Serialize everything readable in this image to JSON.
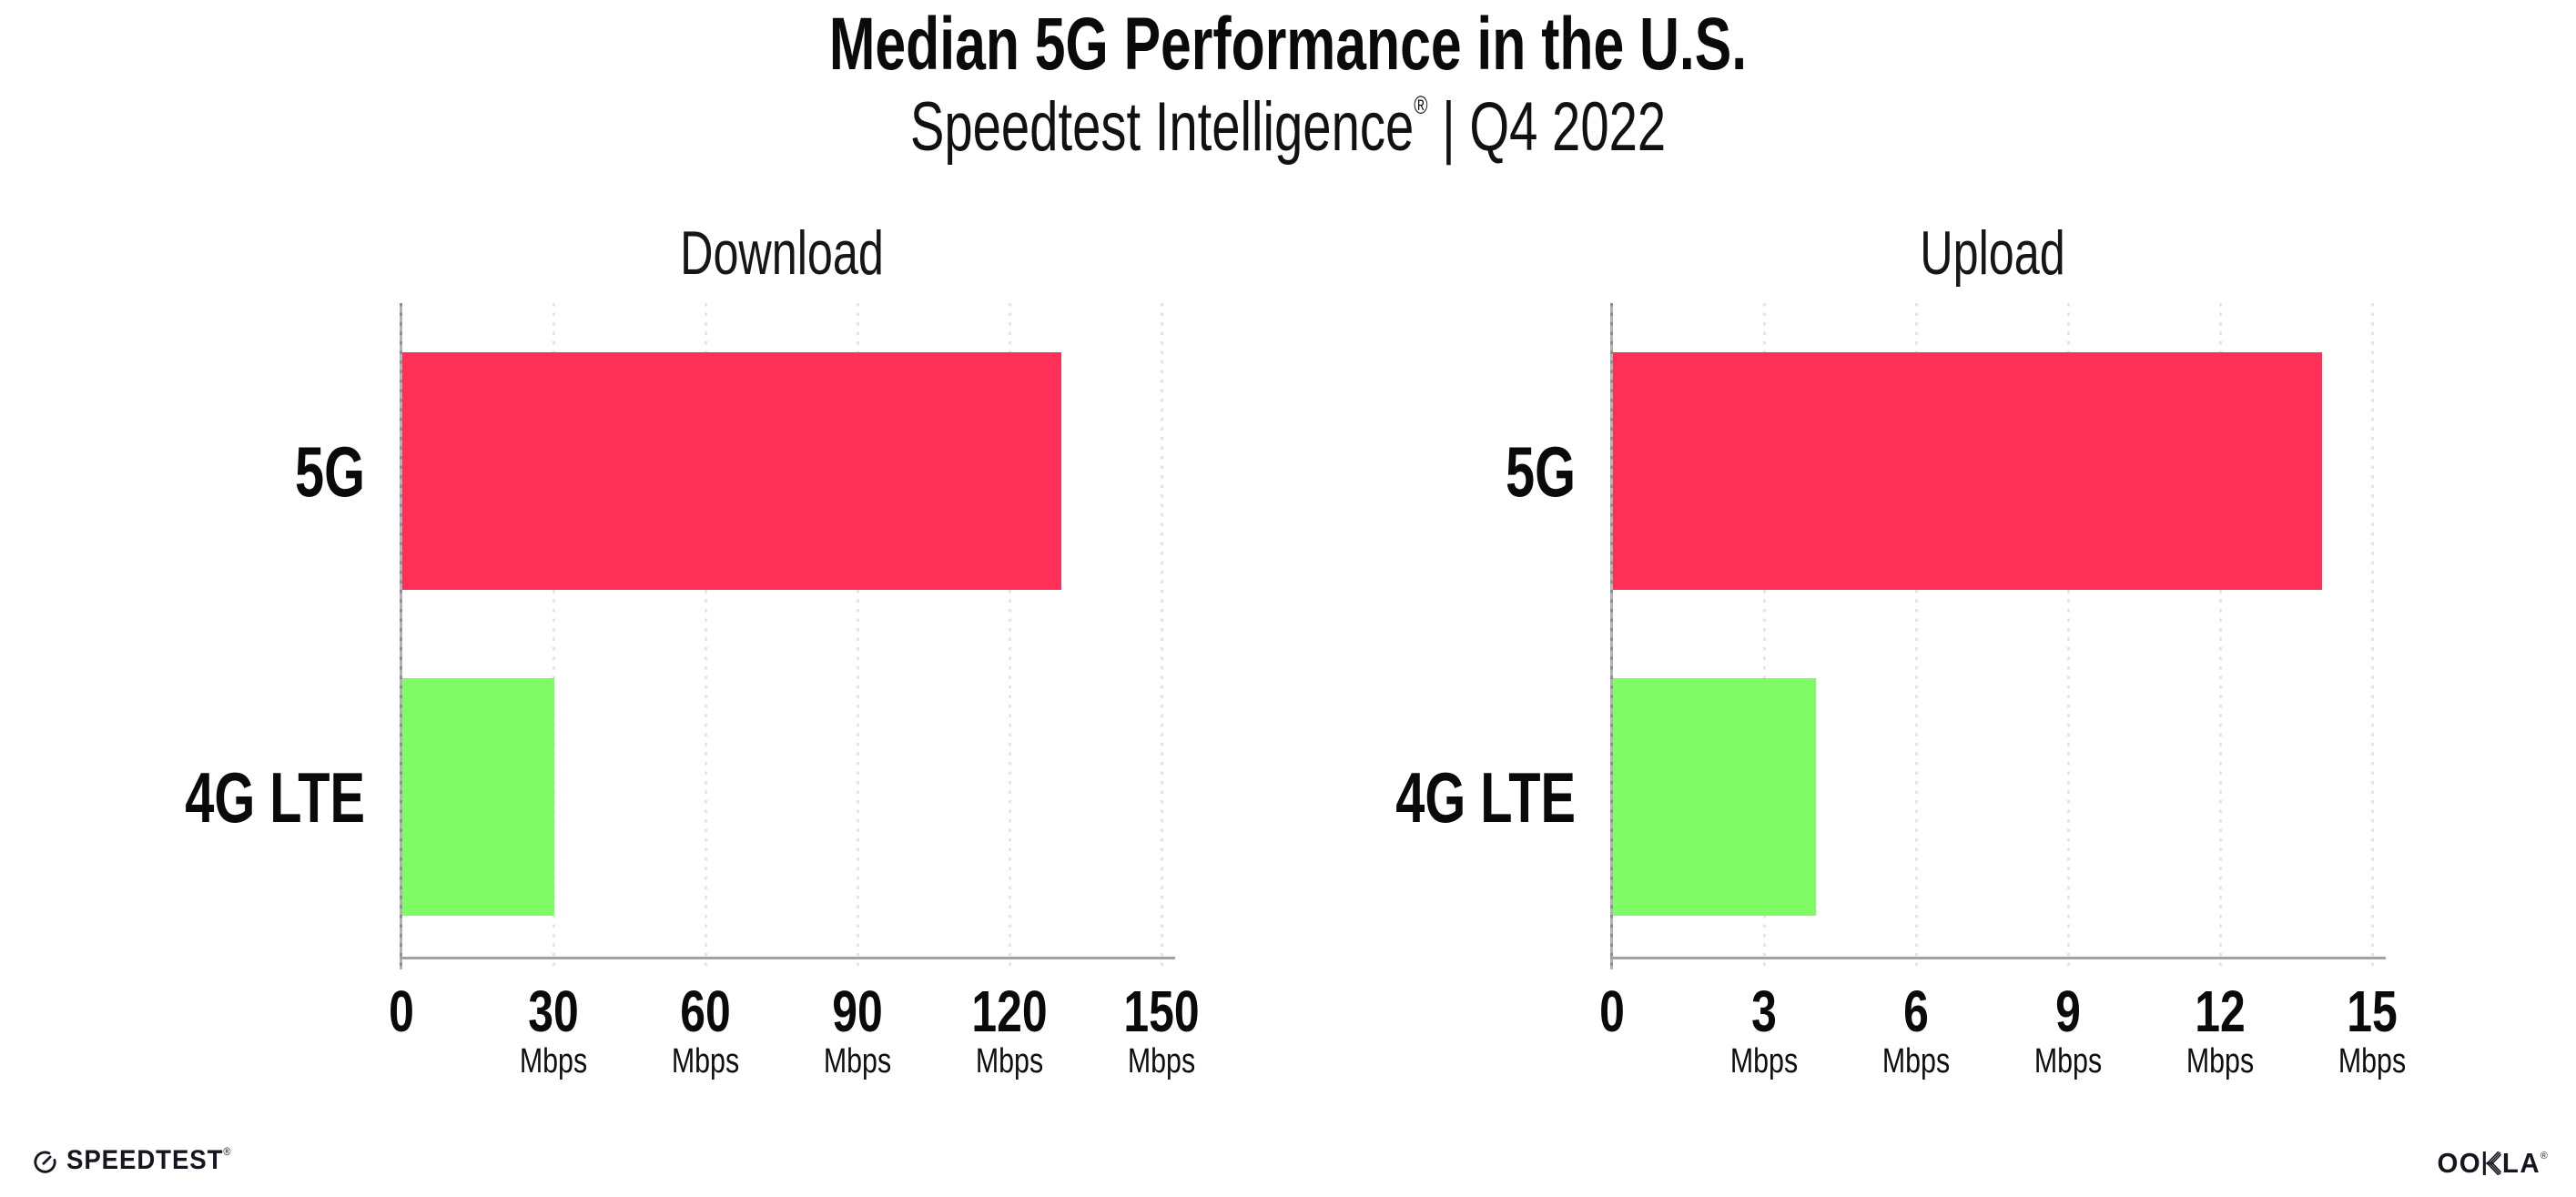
{
  "header": {
    "title": "Median 5G Performance in the U.S.",
    "subtitle_prefix": "Speedtest Intelligence",
    "subtitle_regmark": "®",
    "subtitle_suffix": " | Q4 2022"
  },
  "chart_data": [
    {
      "type": "bar",
      "orientation": "horizontal",
      "title": "Download",
      "categories": [
        "5G",
        "4G LTE"
      ],
      "values": [
        130,
        30
      ],
      "unit": "Mbps",
      "xlim": [
        0,
        150
      ],
      "xticks": [
        0,
        30,
        60,
        90,
        120,
        150
      ],
      "bar_colors": [
        "#ff3057",
        "#7ffb66"
      ],
      "grid": "dotted-vertical-light"
    },
    {
      "type": "bar",
      "orientation": "horizontal",
      "title": "Upload",
      "categories": [
        "5G",
        "4G LTE"
      ],
      "values": [
        14,
        4
      ],
      "unit": "Mbps",
      "xlim": [
        0,
        15
      ],
      "xticks": [
        0,
        3,
        6,
        9,
        12,
        15
      ],
      "bar_colors": [
        "#ff3057",
        "#7ffb66"
      ],
      "grid": "dotted-vertical-light"
    }
  ],
  "footer": {
    "speedtest_label": "SPEEDTEST",
    "speedtest_mark": "®",
    "ookla_prefix": "OO",
    "ookla_suffix": "LA",
    "ookla_mark": "®"
  },
  "colors": {
    "bar_5g": "#ff3057",
    "bar_4g_lte": "#7ffb66",
    "gridline": "#e3e3ee",
    "axis": "#a2a2a2",
    "text": "#0a0a0a"
  }
}
